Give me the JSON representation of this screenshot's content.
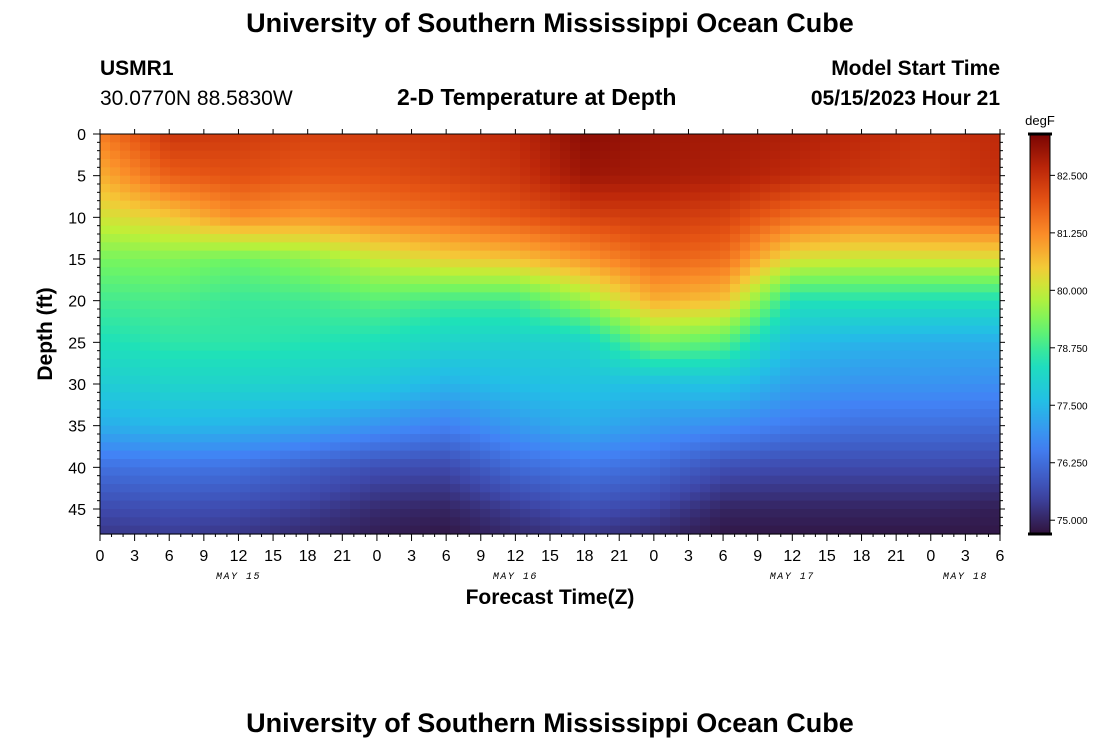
{
  "page_title": "University of Southern Mississippi Ocean Cube",
  "station": {
    "id": "USMR1",
    "coordinates": "30.0770N  88.5830W"
  },
  "model": {
    "label": "Model Start Time",
    "start": "05/15/2023 Hour 21"
  },
  "chart_data": {
    "type": "heatmap",
    "title": "2-D Temperature at Depth",
    "xlabel": "Forecast Time(Z)",
    "ylabel": "Depth (ft)",
    "colorbar_unit": "degF",
    "x_range_hours": [
      0,
      78
    ],
    "xlim_hours": [
      0,
      78
    ],
    "ylim": [
      0,
      48
    ],
    "x_ticks": [
      {
        "hours": 0,
        "label": "0"
      },
      {
        "hours": 3,
        "label": "3"
      },
      {
        "hours": 6,
        "label": "6"
      },
      {
        "hours": 9,
        "label": "9"
      },
      {
        "hours": 12,
        "label": "12"
      },
      {
        "hours": 15,
        "label": "15"
      },
      {
        "hours": 18,
        "label": "18"
      },
      {
        "hours": 21,
        "label": "21"
      },
      {
        "hours": 24,
        "label": "0"
      },
      {
        "hours": 27,
        "label": "3"
      },
      {
        "hours": 30,
        "label": "6"
      },
      {
        "hours": 33,
        "label": "9"
      },
      {
        "hours": 36,
        "label": "12"
      },
      {
        "hours": 39,
        "label": "15"
      },
      {
        "hours": 42,
        "label": "18"
      },
      {
        "hours": 45,
        "label": "21"
      },
      {
        "hours": 48,
        "label": "0"
      },
      {
        "hours": 51,
        "label": "3"
      },
      {
        "hours": 54,
        "label": "6"
      },
      {
        "hours": 57,
        "label": "9"
      },
      {
        "hours": 60,
        "label": "12"
      },
      {
        "hours": 63,
        "label": "15"
      },
      {
        "hours": 66,
        "label": "18"
      },
      {
        "hours": 69,
        "label": "21"
      },
      {
        "hours": 72,
        "label": "0"
      },
      {
        "hours": 75,
        "label": "3"
      },
      {
        "hours": 78,
        "label": "6"
      }
    ],
    "date_labels": [
      {
        "hours": 12,
        "label": "MAY 15"
      },
      {
        "hours": 36,
        "label": "MAY 16"
      },
      {
        "hours": 60,
        "label": "MAY 17"
      },
      {
        "hours": 75,
        "label": "MAY 18"
      }
    ],
    "y_ticks": [
      0,
      5,
      10,
      15,
      20,
      25,
      30,
      35,
      40,
      45
    ],
    "colorbar": {
      "min": 74.7,
      "max": 83.4,
      "ticks": [
        {
          "value": 75.0,
          "label": "75.000"
        },
        {
          "value": 76.25,
          "label": "76.250"
        },
        {
          "value": 77.5,
          "label": "77.500"
        },
        {
          "value": 78.75,
          "label": "78.750"
        },
        {
          "value": 80.0,
          "label": "80.000"
        },
        {
          "value": 81.25,
          "label": "81.250"
        },
        {
          "value": 82.5,
          "label": "82.500"
        }
      ]
    },
    "temperature_profiles_degF": {
      "depths_ft": [
        0,
        5,
        10,
        15,
        20,
        25,
        30,
        35,
        40,
        45,
        48
      ],
      "profiles": [
        {
          "hours": 0,
          "values": [
            81.4,
            80.8,
            80.1,
            79.3,
            78.8,
            78.4,
            77.9,
            77.3,
            76.3,
            75.6,
            75.3
          ]
        },
        {
          "hours": 6,
          "values": [
            82.4,
            81.8,
            80.5,
            79.4,
            78.9,
            78.6,
            78.1,
            77.5,
            76.4,
            75.7,
            75.4
          ]
        },
        {
          "hours": 12,
          "values": [
            82.3,
            82.0,
            81.2,
            79.2,
            78.7,
            78.6,
            78.1,
            77.4,
            76.3,
            75.6,
            75.3
          ]
        },
        {
          "hours": 18,
          "values": [
            82.2,
            81.9,
            81.1,
            79.5,
            78.8,
            78.5,
            78.0,
            77.2,
            76.0,
            75.4,
            75.1
          ]
        },
        {
          "hours": 24,
          "values": [
            82.3,
            82.0,
            81.4,
            80.0,
            79.0,
            78.4,
            77.8,
            76.9,
            75.7,
            75.1,
            74.9
          ]
        },
        {
          "hours": 30,
          "values": [
            82.4,
            82.2,
            81.6,
            80.4,
            78.8,
            78.1,
            77.4,
            76.6,
            75.6,
            75.0,
            74.8
          ]
        },
        {
          "hours": 36,
          "values": [
            82.6,
            82.4,
            81.9,
            80.6,
            78.8,
            78.0,
            77.6,
            77.0,
            76.2,
            75.4,
            75.1
          ]
        },
        {
          "hours": 42,
          "values": [
            83.2,
            83.0,
            82.2,
            81.1,
            79.6,
            78.1,
            77.7,
            77.3,
            76.4,
            75.7,
            75.3
          ]
        },
        {
          "hours": 48,
          "values": [
            83.0,
            82.9,
            82.3,
            81.7,
            80.8,
            79.3,
            77.6,
            77.0,
            76.2,
            75.5,
            75.1
          ]
        },
        {
          "hours": 54,
          "values": [
            82.9,
            82.8,
            82.2,
            81.6,
            80.6,
            79.0,
            77.7,
            76.8,
            75.7,
            75.0,
            74.8
          ]
        },
        {
          "hours": 60,
          "values": [
            82.8,
            82.6,
            81.6,
            80.2,
            78.4,
            77.6,
            77.1,
            76.5,
            75.6,
            75.0,
            74.8
          ]
        },
        {
          "hours": 66,
          "values": [
            82.6,
            82.4,
            81.4,
            80.0,
            78.5,
            77.4,
            76.9,
            76.3,
            75.6,
            75.0,
            74.8
          ]
        },
        {
          "hours": 72,
          "values": [
            82.4,
            82.3,
            81.6,
            80.1,
            78.4,
            77.3,
            76.9,
            76.3,
            75.6,
            75.0,
            74.8
          ]
        },
        {
          "hours": 78,
          "values": [
            82.6,
            82.5,
            81.8,
            80.2,
            78.4,
            77.3,
            76.8,
            76.2,
            75.5,
            74.9,
            74.8
          ]
        }
      ]
    }
  }
}
